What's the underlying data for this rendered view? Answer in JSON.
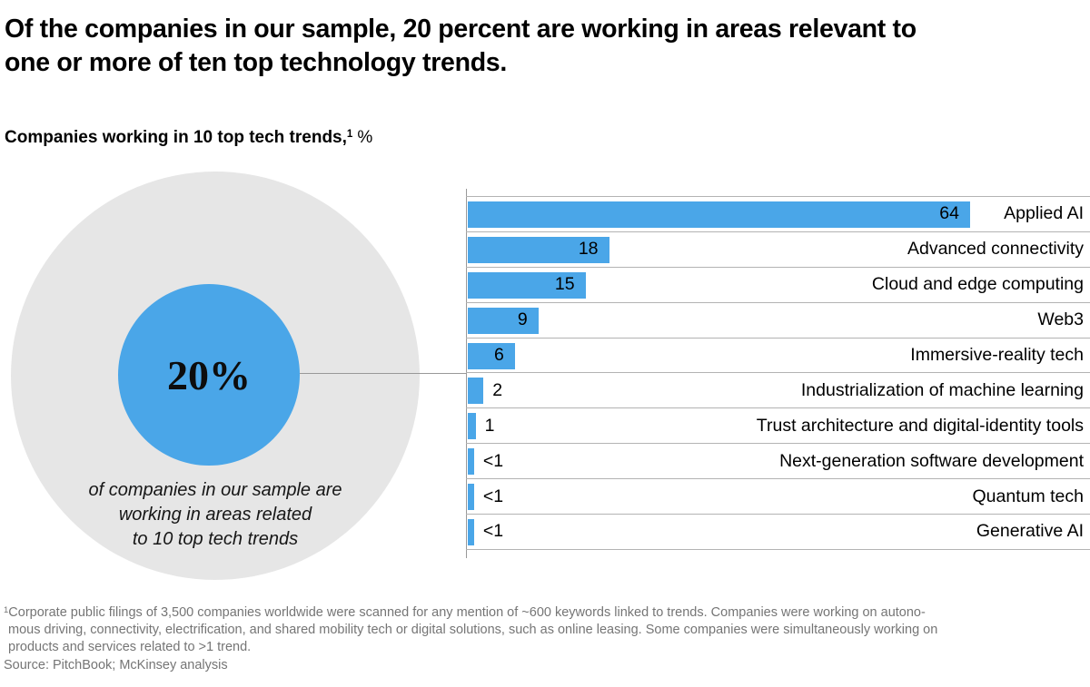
{
  "title": {
    "lines": [
      "Of the companies in our sample, 20 percent are working in areas relevant to",
      "one or more of ten top technology trends."
    ]
  },
  "subtitle": {
    "label": "Companies working in 10 top tech trends,",
    "footnote_marker": "1",
    "unit": "%"
  },
  "highlight": {
    "value": "20%",
    "caption_lines": [
      "of companies in our sample are",
      "working in areas related",
      "to 10 top tech trends"
    ]
  },
  "chart_data": {
    "type": "bar",
    "orientation": "horizontal",
    "title": "Companies working in 10 top tech trends, %",
    "categories": [
      "Applied AI",
      "Advanced connectivity",
      "Cloud and edge computing",
      "Web3",
      "Immersive-reality tech",
      "Industrialization of machine learning",
      "Trust architecture and digital-identity tools",
      "Next-generation software development",
      "Quantum tech",
      "Generative AI"
    ],
    "values": [
      64,
      18,
      15,
      9,
      6,
      2,
      1,
      0.8,
      0.8,
      0.8
    ],
    "value_labels": [
      "64",
      "18",
      "15",
      "9",
      "6",
      "2",
      "1",
      "<1",
      "<1",
      "<1"
    ],
    "value_note": "bars labeled <1 drawn at 0.8",
    "xlim": [
      0,
      79
    ],
    "grid": "horizontal row separators, vertical baseline axis on left",
    "legend": "none",
    "bar_color": "#4AA6E8"
  },
  "footnote": {
    "marker": "1",
    "lines": [
      "Corporate public filings of 3,500 companies worldwide were scanned for any mention of ~600 keywords linked to trends. Companies were working on autono-",
      "mous driving, connectivity, electrification, and shared mobility tech or digital solutions, such as online leasing. Some companies were simultaneously working on",
      "products and services related to >1 trend."
    ],
    "source": "Source: PitchBook; McKinsey analysis"
  },
  "colors": {
    "accent_blue": "#4AA6E8",
    "circle_gray": "#E6E6E6",
    "grid_line": "#B3B3B3",
    "axis_line": "#999999",
    "footnote_gray": "#757575"
  }
}
